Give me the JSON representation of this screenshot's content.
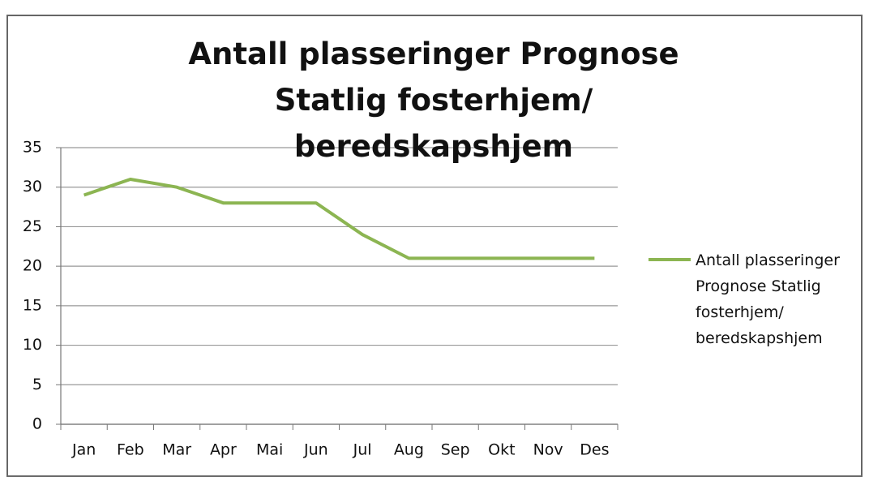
{
  "chart_data": {
    "type": "line",
    "title": "Antall plasseringer Prognose Statlig fosterhjem/ beredskapshjem",
    "categories": [
      "Jan",
      "Feb",
      "Mar",
      "Apr",
      "Mai",
      "Jun",
      "Jul",
      "Aug",
      "Sep",
      "Okt",
      "Nov",
      "Des"
    ],
    "series": [
      {
        "name": "Antall plasseringer Prognose Statlig fosterhjem/ beredskapshjem",
        "color": "#8cb552",
        "values": [
          29,
          31,
          30,
          28,
          28,
          28,
          24,
          21,
          21,
          21,
          21,
          21
        ]
      }
    ],
    "ylim": [
      0,
      35
    ],
    "yticks": [
      0,
      5,
      10,
      15,
      20,
      25,
      30,
      35
    ],
    "grid": true,
    "legend": "right"
  }
}
